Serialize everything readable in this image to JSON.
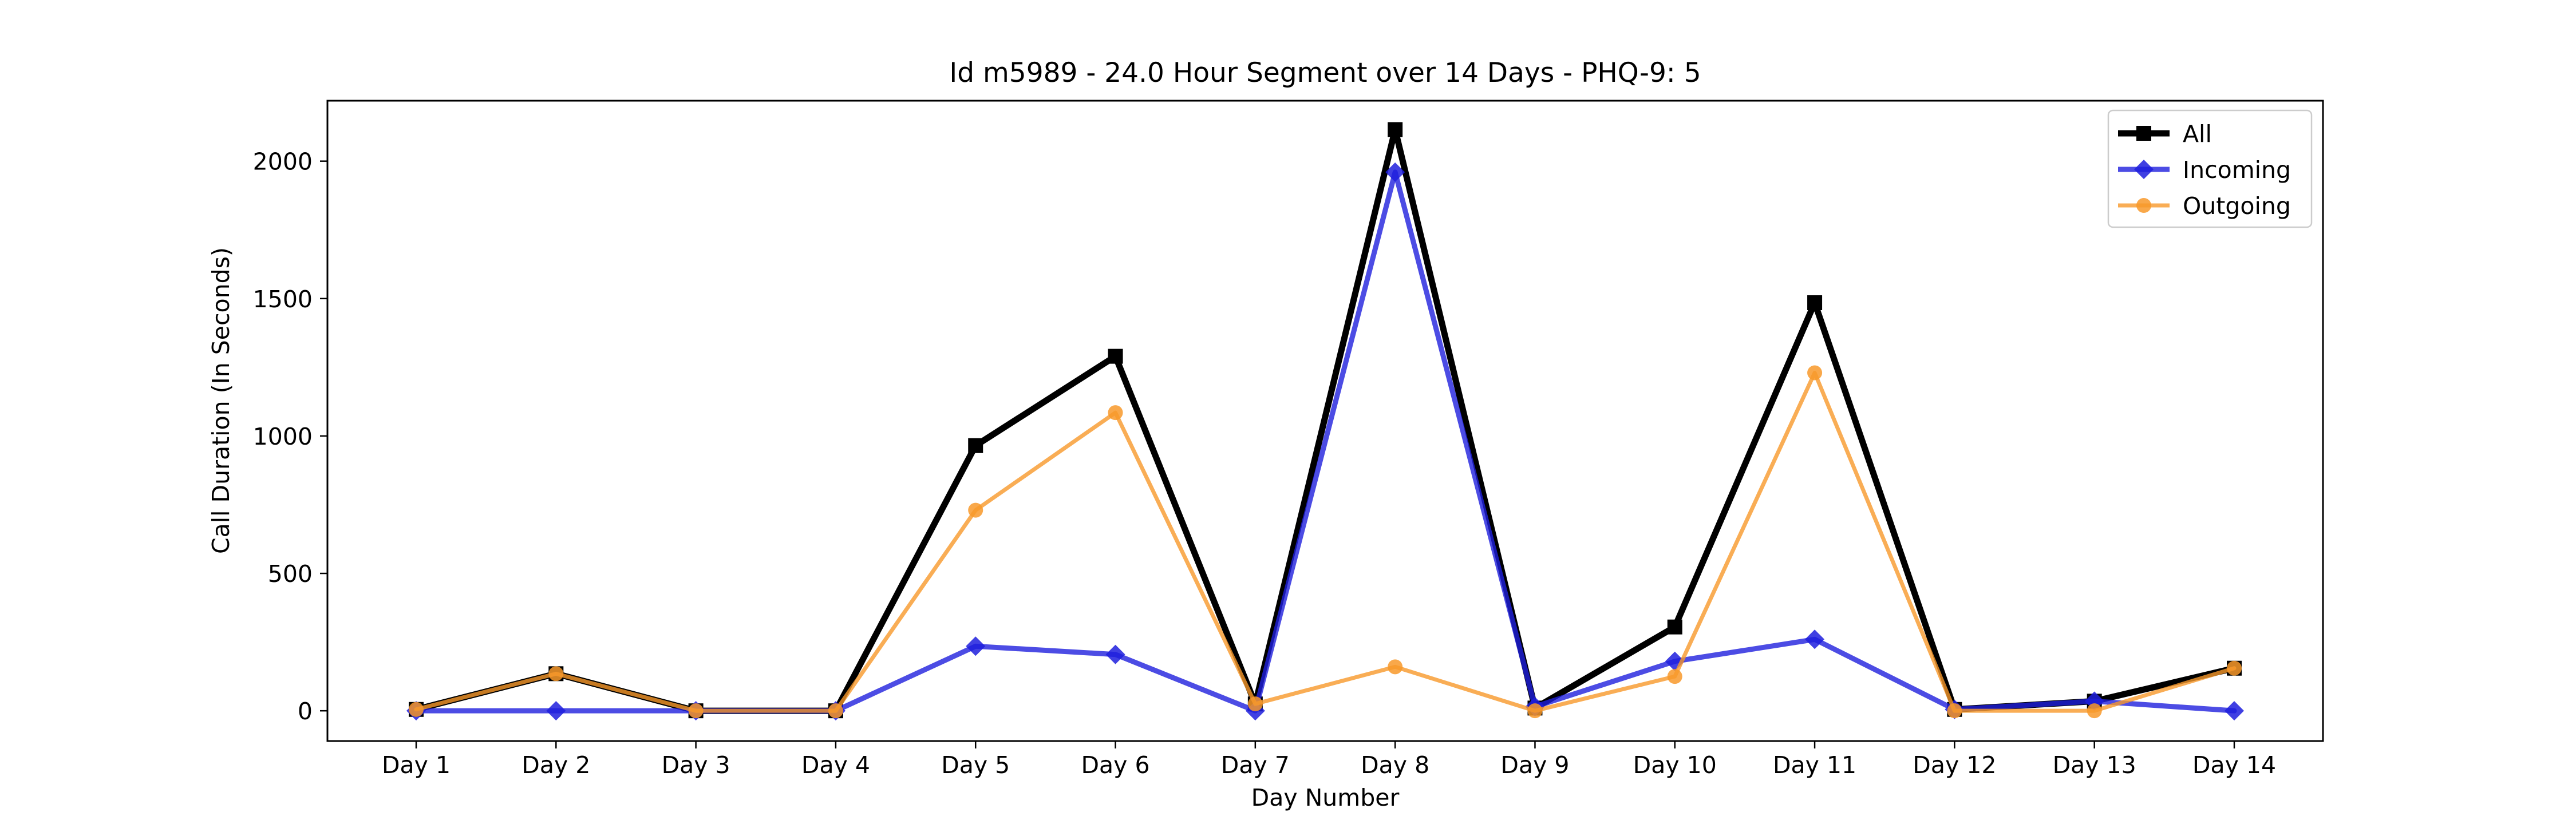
{
  "chart_data": {
    "type": "line",
    "title": "Id m5989 - 24.0 Hour Segment over 14 Days - PHQ-9: 5",
    "xlabel": "Day Number",
    "ylabel": "Call Duration (In Seconds)",
    "categories": [
      "Day 1",
      "Day 2",
      "Day 3",
      "Day 4",
      "Day 5",
      "Day 6",
      "Day 7",
      "Day 8",
      "Day 9",
      "Day 10",
      "Day 11",
      "Day 12",
      "Day 13",
      "Day 14"
    ],
    "ylim": [
      -110,
      2220
    ],
    "yticks": [
      0,
      500,
      1000,
      1500,
      2000
    ],
    "grid": false,
    "legend_position": "top-right",
    "series": [
      {
        "name": "All",
        "color": "#000000",
        "marker": "square",
        "values": [
          5,
          135,
          0,
          0,
          965,
          1290,
          25,
          2115,
          10,
          305,
          1485,
          5,
          35,
          155
        ]
      },
      {
        "name": "Incoming",
        "color": "#1f1fdd",
        "marker": "diamond",
        "values": [
          0,
          0,
          0,
          0,
          235,
          205,
          0,
          1960,
          15,
          180,
          260,
          5,
          35,
          0
        ]
      },
      {
        "name": "Outgoing",
        "color": "#f8992a",
        "marker": "circle",
        "values": [
          5,
          135,
          0,
          0,
          730,
          1085,
          25,
          160,
          0,
          125,
          1230,
          0,
          0,
          155
        ]
      }
    ]
  }
}
